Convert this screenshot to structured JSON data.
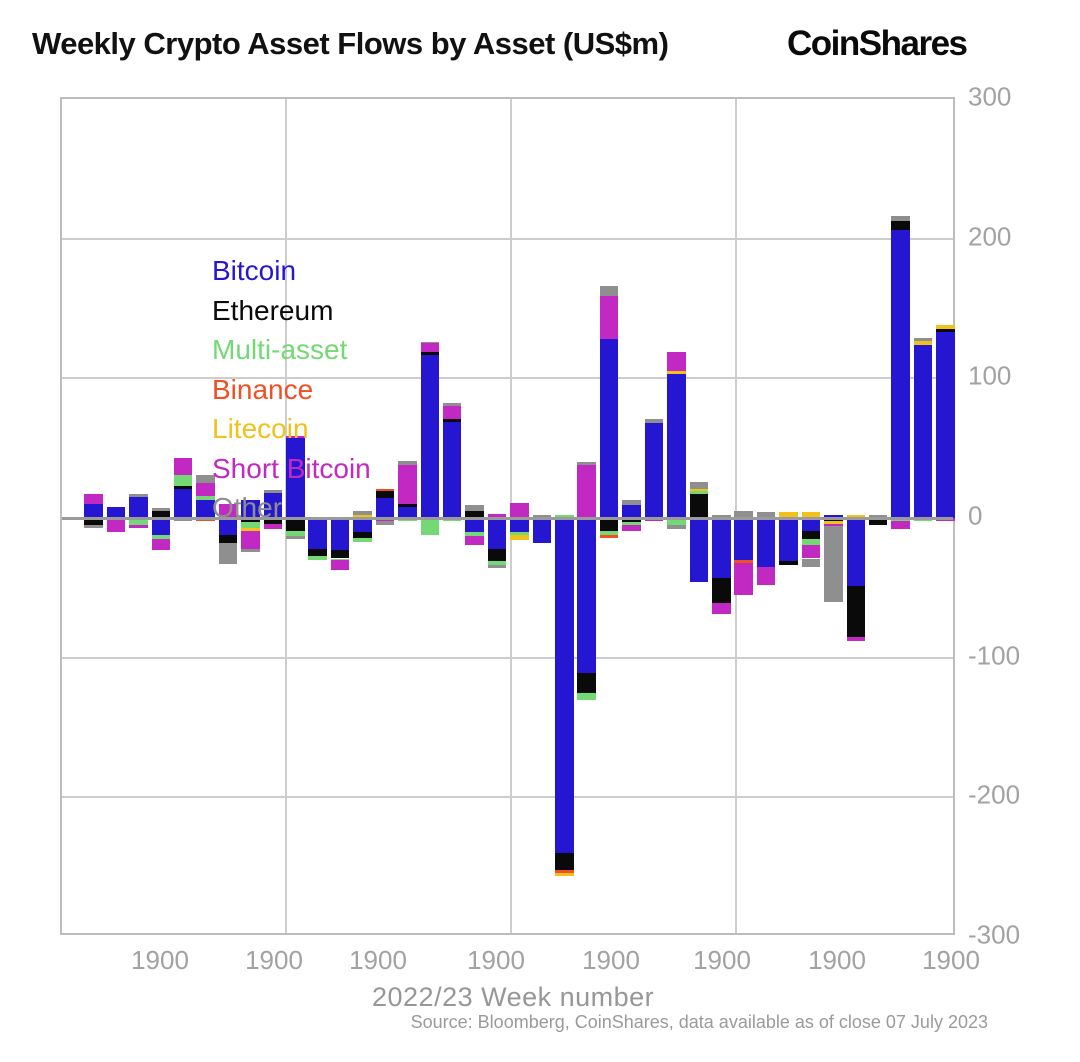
{
  "header": {
    "title": "Weekly Crypto Asset Flows by Asset (US$m)",
    "brand": "CoinShares"
  },
  "footer": {
    "source_note": "Source: Bloomberg, CoinShares, data available as of close 07 July 2023"
  },
  "chart_data": {
    "type": "bar",
    "stacked": true,
    "title": "Weekly Crypto Asset Flows by Asset (US$m)",
    "xlabel": "2022/23 Week number",
    "ylabel": "",
    "ylim": [
      -300,
      300
    ],
    "grid": true,
    "legend_position": "top-left-inside",
    "y_tick_labels": [
      "300",
      "200",
      "100",
      "0",
      "-100",
      "-200",
      "-300"
    ],
    "x_tick_labels": [
      "1900",
      "1900",
      "1900",
      "1900",
      "1900",
      "1900",
      "1900",
      "1900"
    ],
    "colors": {
      "bitcoin": "#2517d1",
      "ethereum": "#0a0a0a",
      "multi_asset": "#74d974",
      "binance": "#f05024",
      "litecoin": "#f2c21a",
      "short_bitcoin": "#c228c2",
      "other": "#8f8f8f",
      "grid": "#cdcdcd",
      "zero_axis": "#9a9a9a",
      "tick_text": "#a2a2a2"
    },
    "series": [
      {
        "name": "Bitcoin",
        "color": "#2517d1",
        "values": [
          10,
          8,
          15,
          -12,
          21,
          13,
          -12,
          13,
          18,
          57,
          -22,
          -23,
          -10,
          14,
          8,
          117,
          69,
          -10,
          -22,
          -10,
          -18,
          -240,
          -111,
          128,
          9,
          68,
          103,
          -46,
          -43,
          -30,
          -35,
          -31,
          -9,
          2,
          -49,
          0,
          206,
          124,
          133
        ]
      },
      {
        "name": "Ethereum",
        "color": "#0a0a0a",
        "values": [
          -5,
          0,
          0,
          5,
          2,
          0,
          -6,
          -3,
          -4,
          -9,
          -5,
          -6,
          -4,
          5,
          2,
          2,
          2,
          5,
          -9,
          0,
          0,
          -12,
          -14,
          -9,
          -3,
          0,
          0,
          17,
          -18,
          0,
          0,
          -3,
          -6,
          -2,
          -36,
          -5,
          7,
          0,
          2
        ]
      },
      {
        "name": "Multi-asset",
        "color": "#74d974",
        "values": [
          0,
          0,
          -5,
          -3,
          8,
          3,
          0,
          -4,
          0,
          -4,
          -3,
          -1,
          -3,
          0,
          -2,
          -12,
          -2,
          -3,
          -3,
          -2,
          0,
          2,
          -5,
          -3,
          -2,
          0,
          -5,
          2,
          0,
          0,
          0,
          0,
          -4,
          0,
          0,
          0,
          -2,
          -2,
          0
        ]
      },
      {
        "name": "Binance",
        "color": "#f05024",
        "values": [
          0,
          0,
          0,
          0,
          0,
          -2,
          0,
          0,
          0,
          0,
          0,
          0,
          0,
          2,
          0,
          0,
          0,
          0,
          0,
          0,
          0,
          -2,
          0,
          -2,
          0,
          0,
          0,
          0,
          0,
          -2,
          0,
          0,
          0,
          0,
          0,
          0,
          0,
          0,
          0
        ]
      },
      {
        "name": "Litecoin",
        "color": "#f2c21a",
        "values": [
          0,
          0,
          0,
          0,
          0,
          0,
          0,
          -2,
          0,
          0,
          0,
          0,
          2,
          0,
          0,
          0,
          0,
          0,
          0,
          -4,
          0,
          -2,
          0,
          0,
          0,
          0,
          2,
          2,
          0,
          0,
          0,
          4,
          4,
          -2,
          2,
          0,
          0,
          3,
          3
        ]
      },
      {
        "name": "Short Bitcoin",
        "color": "#c228c2",
        "values": [
          7,
          -10,
          -2,
          -8,
          12,
          9,
          10,
          -13,
          -4,
          2,
          0,
          -7,
          0,
          -2,
          28,
          6,
          9,
          -6,
          3,
          11,
          0,
          0,
          38,
          31,
          -4,
          -2,
          14,
          0,
          -8,
          -23,
          -13,
          0,
          -10,
          -2,
          -3,
          0,
          -6,
          0,
          -2
        ]
      },
      {
        "name": "Other",
        "color": "#8f8f8f",
        "values": [
          -2,
          0,
          2,
          2,
          -2,
          6,
          -15,
          -2,
          2,
          -2,
          0,
          0,
          3,
          -3,
          3,
          1,
          2,
          4,
          -2,
          0,
          2,
          0,
          2,
          7,
          4,
          3,
          -3,
          5,
          2,
          5,
          4,
          0,
          -6,
          -54,
          0,
          2,
          3,
          2,
          0
        ]
      }
    ]
  }
}
